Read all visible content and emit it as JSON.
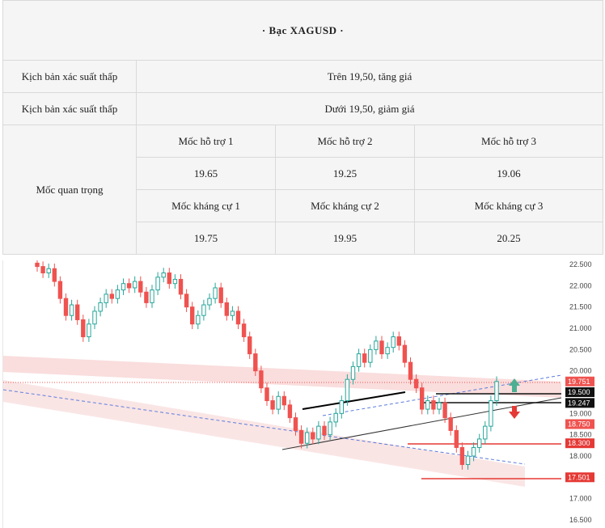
{
  "title": "· Bạc  XAGUSD ·",
  "scenario_rows": [
    {
      "label": "Kịch bản xác suất thấp",
      "value": "Trên  19,50,  tăng giá"
    },
    {
      "label": "Kịch  bản  xác  suất  thấp",
      "value": "Dưới  19,50,  giảm  giá"
    }
  ],
  "levels": {
    "label": "Mốc  quan  trọng",
    "support": [
      {
        "name": "Mốc  hỗ  trợ  1",
        "value": "19.65"
      },
      {
        "name": "Mốc  hỗ  trợ  2",
        "value": "19.25"
      },
      {
        "name": "Mốc  hỗ  trợ  3",
        "value": "19.06"
      }
    ],
    "resistance": [
      {
        "name": "Mốc  kháng  cự  1",
        "value": "19.75"
      },
      {
        "name": "Mốc  kháng  cự  2",
        "value": "19.95"
      },
      {
        "name": "Mốc  kháng  cự  3",
        "value": "20.25"
      }
    ]
  },
  "chart": {
    "axis_ticks": [
      "22.500",
      "22.000",
      "21.500",
      "21.000",
      "20.500",
      "20.000",
      "19.000",
      "18.500",
      "18.000",
      "17.000",
      "16.500"
    ],
    "price_tags": [
      {
        "text": "19.751",
        "color": "#ef5350"
      },
      {
        "text": "19.500",
        "color": "#111111"
      },
      {
        "text": "19.247",
        "color": "#111111"
      },
      {
        "text": "18.750",
        "color": "#ef5350"
      },
      {
        "text": "18.300",
        "color": "#e53935"
      },
      {
        "text": "17.501",
        "color": "#e53935"
      }
    ],
    "colors": {
      "up": "#26a69a",
      "down": "#ef5350",
      "channel": "#f7c9c9"
    }
  },
  "chart_data": {
    "type": "candlestick",
    "instrument": "XAGUSD",
    "ylim": [
      16.5,
      22.5
    ],
    "close": [
      22.45,
      22.3,
      22.4,
      22.1,
      21.7,
      21.3,
      21.55,
      21.2,
      20.8,
      21.1,
      21.4,
      21.6,
      21.8,
      21.7,
      21.9,
      22.05,
      21.95,
      22.1,
      21.85,
      21.6,
      21.9,
      22.2,
      22.3,
      22.05,
      22.15,
      21.8,
      21.5,
      21.1,
      21.3,
      21.55,
      21.7,
      21.95,
      21.6,
      21.3,
      21.4,
      21.1,
      20.8,
      20.4,
      20.0,
      19.6,
      19.3,
      19.1,
      19.4,
      19.2,
      18.9,
      18.6,
      18.3,
      18.55,
      18.4,
      18.7,
      18.5,
      18.8,
      19.0,
      19.3,
      19.8,
      20.1,
      20.4,
      20.2,
      20.5,
      20.7,
      20.4,
      20.55,
      20.8,
      20.6,
      20.2,
      19.8,
      19.6,
      19.1,
      19.3,
      19.1,
      19.25,
      18.9,
      18.6,
      18.2,
      17.8,
      18.0,
      18.2,
      18.4,
      18.7,
      19.3,
      19.75
    ]
  }
}
